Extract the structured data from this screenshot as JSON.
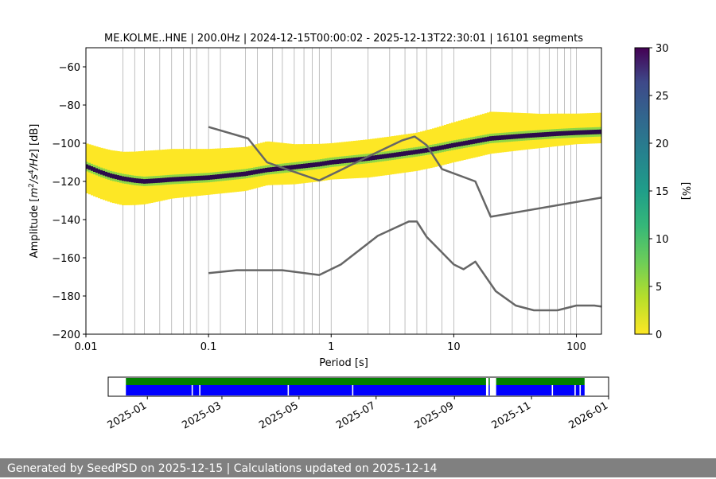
{
  "chart_data": [
    {
      "type": "heatmap",
      "title": "ME.KOLME..HNE | 200.0Hz | 2024-12-15T00:00:02 - 2025-12-13T22:30:01 | 16101 segments",
      "xlabel": "Period [s]",
      "ylabel_parts": [
        "Amplitude [",
        "m",
        "2",
        "/",
        "s",
        "4",
        "/",
        "Hz",
        "] [dB]"
      ],
      "x_scale": "log",
      "xlim": [
        0.01,
        160
      ],
      "ylim": [
        -200,
        -50
      ],
      "x_ticks": [
        {
          "value": 0.01,
          "label": "0.01"
        },
        {
          "value": 0.1,
          "label": "0.1"
        },
        {
          "value": 1,
          "label": "1"
        },
        {
          "value": 10,
          "label": "10"
        },
        {
          "value": 100,
          "label": "100"
        }
      ],
      "y_ticks": [
        -60,
        -80,
        -100,
        -120,
        -140,
        -160,
        -180,
        -200
      ],
      "y_tick_labels": [
        "−60",
        "−80",
        "−100",
        "−120",
        "−140",
        "−160",
        "−180",
        "−200"
      ],
      "grid_x_periods": [
        0.02,
        0.025,
        0.03,
        0.04,
        0.05,
        0.0625,
        0.071,
        0.08,
        0.1,
        0.125,
        0.2,
        0.25,
        0.333,
        0.4,
        0.5,
        0.6,
        0.7,
        0.8,
        1.0,
        2.0,
        3.0,
        4.0,
        5.0,
        6.0,
        8.0,
        10.0,
        20.0,
        30.0,
        40.0,
        50.0,
        60.0,
        70.0,
        80.0,
        90.0,
        100.0
      ],
      "colorbar": {
        "label": "[%]",
        "range": [
          0,
          30
        ],
        "ticks": [
          0,
          5,
          10,
          15,
          20,
          25,
          30
        ],
        "colormap": "viridis_r"
      },
      "mode_curve": {
        "periods": [
          0.01,
          0.013,
          0.016,
          0.02,
          0.025,
          0.03,
          0.04,
          0.05,
          0.07,
          0.1,
          0.2,
          0.3,
          0.5,
          0.8,
          1,
          2,
          3,
          5,
          7,
          10,
          15,
          20,
          40,
          70,
          100,
          160
        ],
        "db": [
          -112,
          -115,
          -117,
          -118.5,
          -119.5,
          -120,
          -119.5,
          -119,
          -118.5,
          -118,
          -116,
          -114,
          -112.5,
          -111,
          -110,
          -108,
          -106.5,
          -104.5,
          -103,
          -101,
          -99,
          -97.5,
          -96,
          -95,
          -94.5,
          -94
        ]
      },
      "band_spread": {
        "periods": [
          0.01,
          0.02,
          0.03,
          0.05,
          0.1,
          0.2,
          0.3,
          0.5,
          1,
          2,
          3,
          5,
          10,
          20,
          50,
          100,
          160
        ],
        "lower_db": [
          -14,
          -14,
          -12,
          -10,
          -9,
          -9,
          -8,
          -9,
          -9,
          -10,
          -10,
          -10,
          -9,
          -8,
          -7,
          -6,
          -6
        ],
        "upper_db": [
          12,
          14,
          16,
          16,
          15,
          14,
          15,
          12,
          10,
          10,
          10,
          10,
          12,
          14,
          11,
          10,
          10
        ]
      },
      "series": [
        {
          "color": "#666666",
          "x": [
            0.1,
            0.21,
            0.3,
            0.45,
            0.8,
            1.2,
            2.0,
            3.8,
            4.8,
            6.0,
            8.0,
            15.0,
            20.0,
            160.0
          ],
          "y": [
            -91.5,
            -97.5,
            -110,
            -114,
            -119.5,
            -114,
            -107,
            -98.5,
            -96.5,
            -101,
            -113.5,
            -120,
            -138.5,
            -128.5
          ]
        },
        {
          "color": "#666666",
          "x": [
            0.1,
            0.17,
            0.4,
            0.8,
            1.2,
            2.4,
            4.3,
            5.0,
            6.0,
            10.0,
            12.0,
            15.0,
            22.0,
            32.0,
            45.0,
            70.0,
            100.0,
            140.0,
            160.0
          ],
          "y": [
            -168,
            -166.5,
            -166.5,
            -169,
            -163.5,
            -148.5,
            -141,
            -141,
            -149,
            -163.5,
            -166,
            -162,
            -177.5,
            -185,
            -187.5,
            -187.5,
            -185,
            -185,
            -185.5
          ]
        }
      ]
    },
    {
      "type": "timeline",
      "x_ticks": [
        "2025-01",
        "2025-03",
        "2025-05",
        "2025-07",
        "2025-09",
        "2025-11",
        "2026-01"
      ],
      "xlim": [
        "2024-12-01",
        "2026-01-01"
      ],
      "rows": [
        {
          "color": "#008000",
          "ranges": [
            [
              "2024-12-15",
              "2025-09-26"
            ],
            [
              "2025-09-28",
              "2025-09-29"
            ],
            [
              "2025-10-04",
              "2025-12-13"
            ]
          ]
        },
        {
          "color": "#0000ff",
          "ranges": [
            [
              "2024-12-15",
              "2025-02-05"
            ],
            [
              "2025-02-06",
              "2025-02-11"
            ],
            [
              "2025-02-12",
              "2025-04-22"
            ],
            [
              "2025-04-23",
              "2025-06-12"
            ],
            [
              "2025-06-13",
              "2025-09-26"
            ],
            [
              "2025-09-28",
              "2025-09-29"
            ],
            [
              "2025-10-04",
              "2025-11-17"
            ],
            [
              "2025-11-18",
              "2025-12-05"
            ],
            [
              "2025-12-06",
              "2025-12-09"
            ],
            [
              "2025-12-10",
              "2025-12-13"
            ]
          ]
        }
      ]
    }
  ],
  "footer": {
    "text": "Generated by SeedPSD on 2025-12-15 | Calculations updated on 2025-12-14"
  }
}
